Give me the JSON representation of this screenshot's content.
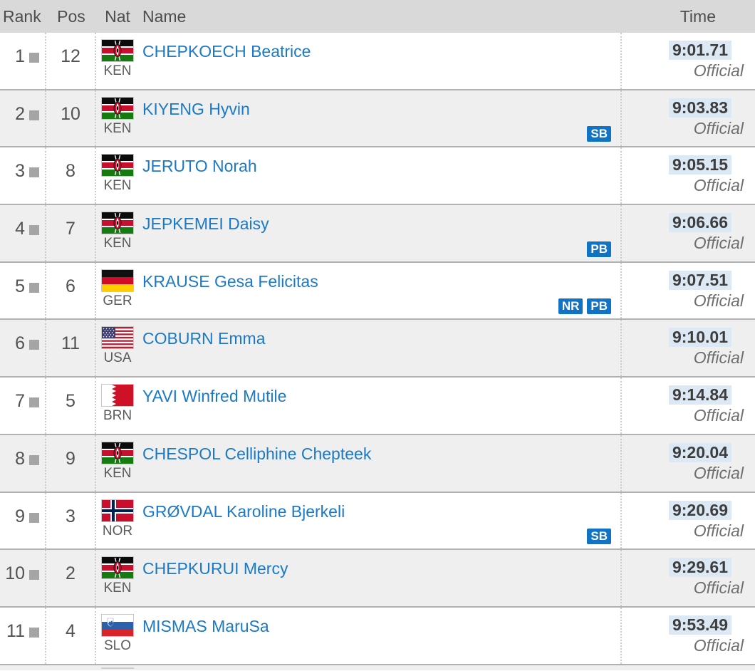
{
  "table": {
    "headers": {
      "rank": "Rank",
      "pos": "Pos",
      "nat": "Nat",
      "name": "Name",
      "time": "Time"
    },
    "status_label": "Official",
    "rows": [
      {
        "rank": "1",
        "pos": "12",
        "nat": "KEN",
        "name": "CHEPKOECH Beatrice",
        "time": "9:01.71",
        "badges": []
      },
      {
        "rank": "2",
        "pos": "10",
        "nat": "KEN",
        "name": "KIYENG Hyvin",
        "time": "9:03.83",
        "badges": [
          "SB"
        ]
      },
      {
        "rank": "3",
        "pos": "8",
        "nat": "KEN",
        "name": "JERUTO Norah",
        "time": "9:05.15",
        "badges": []
      },
      {
        "rank": "4",
        "pos": "7",
        "nat": "KEN",
        "name": "JEPKEMEI Daisy",
        "time": "9:06.66",
        "badges": [
          "PB"
        ]
      },
      {
        "rank": "5",
        "pos": "6",
        "nat": "GER",
        "name": "KRAUSE Gesa Felicitas",
        "time": "9:07.51",
        "badges": [
          "NR",
          "PB"
        ]
      },
      {
        "rank": "6",
        "pos": "11",
        "nat": "USA",
        "name": "COBURN Emma",
        "time": "9:10.01",
        "badges": []
      },
      {
        "rank": "7",
        "pos": "5",
        "nat": "BRN",
        "name": "YAVI Winfred Mutile",
        "time": "9:14.84",
        "badges": []
      },
      {
        "rank": "8",
        "pos": "9",
        "nat": "KEN",
        "name": "CHESPOL Celliphine Chepteek",
        "time": "9:20.04",
        "badges": []
      },
      {
        "rank": "9",
        "pos": "3",
        "nat": "NOR",
        "name": "GRØVDAL Karoline Bjerkeli",
        "time": "9:20.69",
        "badges": [
          "SB"
        ]
      },
      {
        "rank": "10",
        "pos": "2",
        "nat": "KEN",
        "name": "CHEPKURUI Mercy",
        "time": "9:29.61",
        "badges": []
      },
      {
        "rank": "11",
        "pos": "4",
        "nat": "SLO",
        "name": "MISMAS MaruSa",
        "time": "9:53.49",
        "badges": []
      }
    ]
  },
  "colors": {
    "header_bg": "#d9d9d9",
    "row_alt_bg": "#efefef",
    "row_border": "#b2b2b2",
    "link_blue": "#1b79c6",
    "badge_blue": "#1173c4",
    "time_highlight": "#dce8f3",
    "rank_square_gray": "#a5a5a5"
  }
}
